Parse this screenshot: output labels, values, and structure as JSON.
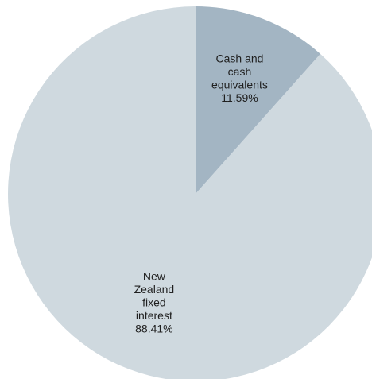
{
  "chart_data": {
    "type": "pie",
    "start_angle_deg": 0,
    "direction": "clockwise",
    "slices": [
      {
        "name": "Cash and cash equivalents",
        "label_lines": [
          "Cash and",
          "cash",
          "equivalents",
          "11.59%"
        ],
        "value": 11.59,
        "color": "#a3b5c3"
      },
      {
        "name": "New Zealand fixed interest",
        "label_lines": [
          "New",
          "Zealand",
          "fixed",
          "interest",
          "88.41%"
        ],
        "value": 88.41,
        "color": "#cfd9df"
      }
    ],
    "legend": false
  }
}
